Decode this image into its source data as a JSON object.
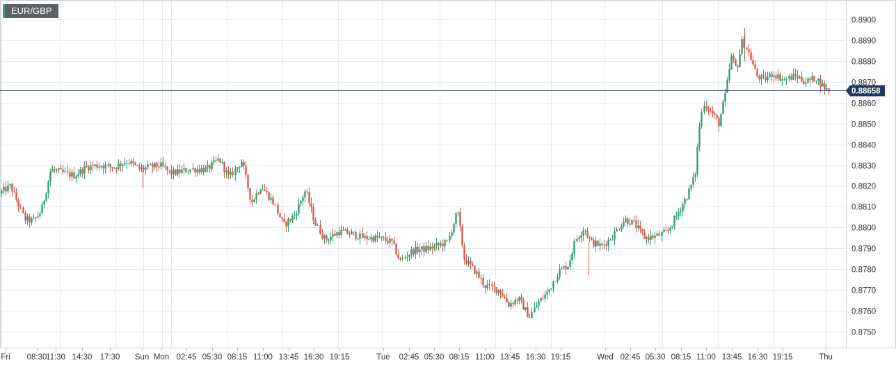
{
  "symbol": "EUR/GBP",
  "colors": {
    "up": "#2e9e6f",
    "down": "#d9584a",
    "price_line": "#1f3a60",
    "grid": "#e6e8ee",
    "symbol_accent": "#43a06b"
  },
  "chart_data": {
    "type": "candlestick",
    "title": "EUR/GBP",
    "ylim": [
      0.8744,
      0.8909
    ],
    "y_ticks": [
      "0.8750",
      "0.8760",
      "0.8770",
      "0.8780",
      "0.8790",
      "0.8800",
      "0.8810",
      "0.8820",
      "0.8830",
      "0.8840",
      "0.8850",
      "0.8860",
      "0.8870",
      "0.8880",
      "0.8890",
      "0.8900"
    ],
    "x_ticks": [
      "Fri",
      "08:30",
      "11:30",
      "14:30",
      "17:30",
      "Sun",
      "Mon",
      "02:45",
      "05:30",
      "08:15",
      "11:00",
      "13:45",
      "16:30",
      "19:15",
      "Tue",
      "02:45",
      "05:30",
      "08:15",
      "11:00",
      "13:45",
      "16:30",
      "19:15",
      "Wed",
      "02:45",
      "05:30",
      "08:15",
      "11:00",
      "13:45",
      "16:30",
      "19:15",
      "Thu"
    ],
    "last_price": "0.88658",
    "last_price_value": 0.88658,
    "grid": true,
    "path_anchors": [
      [
        0,
        0.8816
      ],
      [
        18,
        0.882
      ],
      [
        28,
        0.8812
      ],
      [
        38,
        0.8804
      ],
      [
        50,
        0.8803
      ],
      [
        62,
        0.8808
      ],
      [
        76,
        0.8828
      ],
      [
        96,
        0.8826
      ],
      [
        110,
        0.8825
      ],
      [
        126,
        0.8829
      ],
      [
        146,
        0.883
      ],
      [
        166,
        0.8829
      ],
      [
        186,
        0.8832
      ],
      [
        204,
        0.8828
      ],
      [
        232,
        0.883
      ],
      [
        250,
        0.8826
      ],
      [
        276,
        0.8828
      ],
      [
        300,
        0.8828
      ],
      [
        318,
        0.8833
      ],
      [
        332,
        0.8824
      ],
      [
        350,
        0.8832
      ],
      [
        364,
        0.8812
      ],
      [
        378,
        0.882
      ],
      [
        396,
        0.8812
      ],
      [
        410,
        0.8801
      ],
      [
        426,
        0.8806
      ],
      [
        442,
        0.8818
      ],
      [
        456,
        0.8802
      ],
      [
        470,
        0.8794
      ],
      [
        490,
        0.8798
      ],
      [
        508,
        0.8797
      ],
      [
        526,
        0.8795
      ],
      [
        546,
        0.8795
      ],
      [
        566,
        0.8793
      ],
      [
        578,
        0.8784
      ],
      [
        596,
        0.8789
      ],
      [
        620,
        0.879
      ],
      [
        646,
        0.8793
      ],
      [
        660,
        0.8808
      ],
      [
        670,
        0.8785
      ],
      [
        686,
        0.8779
      ],
      [
        700,
        0.8772
      ],
      [
        720,
        0.877
      ],
      [
        734,
        0.8763
      ],
      [
        748,
        0.8766
      ],
      [
        764,
        0.8757
      ],
      [
        776,
        0.8764
      ],
      [
        790,
        0.8769
      ],
      [
        806,
        0.8779
      ],
      [
        820,
        0.8782
      ],
      [
        830,
        0.8794
      ],
      [
        842,
        0.88
      ],
      [
        852,
        0.8793
      ],
      [
        868,
        0.8791
      ],
      [
        884,
        0.8796
      ],
      [
        900,
        0.8804
      ],
      [
        914,
        0.8802
      ],
      [
        930,
        0.8795
      ],
      [
        948,
        0.8796
      ],
      [
        962,
        0.8798
      ],
      [
        974,
        0.8805
      ],
      [
        990,
        0.8815
      ],
      [
        1002,
        0.8825
      ],
      [
        1008,
        0.8848
      ],
      [
        1014,
        0.886
      ],
      [
        1026,
        0.8855
      ],
      [
        1036,
        0.885
      ],
      [
        1046,
        0.8865
      ],
      [
        1054,
        0.8882
      ],
      [
        1062,
        0.8876
      ],
      [
        1070,
        0.889
      ],
      [
        1080,
        0.8883
      ],
      [
        1090,
        0.8873
      ],
      [
        1100,
        0.8871
      ],
      [
        1114,
        0.8874
      ],
      [
        1130,
        0.8871
      ],
      [
        1146,
        0.8873
      ],
      [
        1160,
        0.887
      ],
      [
        1176,
        0.8872
      ],
      [
        1186,
        0.8868
      ],
      [
        1192,
        0.8866
      ]
    ]
  }
}
